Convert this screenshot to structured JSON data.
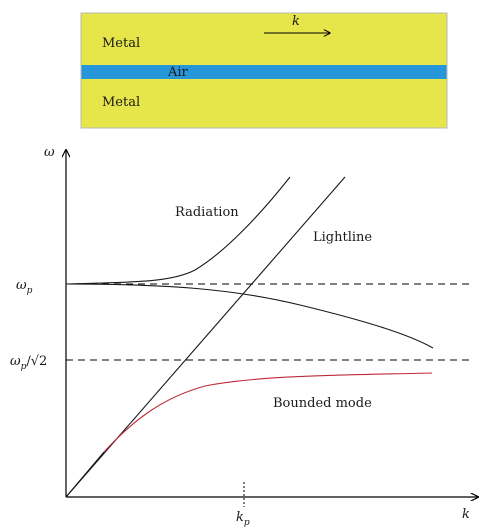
{
  "waveguide": {
    "top_layer": "Metal",
    "middle_layer": "Air",
    "bottom_layer": "Metal",
    "wavevector_label": "k",
    "colors": {
      "metal": "#e6e64a",
      "air": "#2596d8",
      "border": "#b8b8b8"
    }
  },
  "dispersion": {
    "y_axis_label": "ω",
    "x_axis_label": "k",
    "wp_label": "ω",
    "wp_sub": "p",
    "wp_sqrt2_label": "ω",
    "wp_sqrt2_sub": "p",
    "wp_sqrt2_tail": "/√2",
    "kp_label": "k",
    "kp_sub": "p",
    "radiation_label": "Radiation",
    "lightline_label": "Lightline",
    "bounded_label": "Bounded mode",
    "colors": {
      "axes": "#000000",
      "curves": "#1a1a1a",
      "bounded": "#c0283a"
    }
  }
}
